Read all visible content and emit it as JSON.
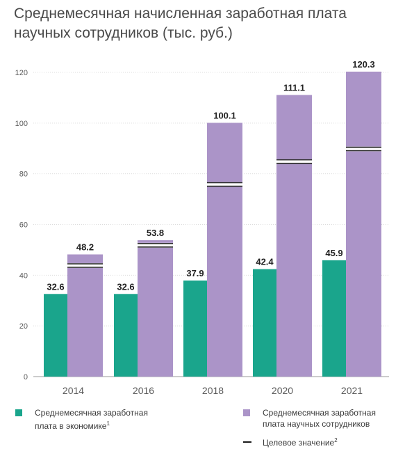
{
  "title": "Среднемесячная начисленная заработная плата научных сотрудников (тыс. руб.)",
  "colors": {
    "economy": "#1aa58c",
    "scientists": "#ab94c8",
    "target": "#1a1a1a",
    "grid": "#dcdcdc",
    "text": "#5a5a5a"
  },
  "legend": {
    "economy": "Среднемесячная заработная\nплата в экономике",
    "economy_note": "1",
    "scientists": "Среднемесячная заработная\nплата научных сотрудников",
    "target": "Целевое значение",
    "target_note": "2"
  },
  "chart_data": {
    "type": "bar",
    "categories": [
      "2014",
      "2016",
      "2018",
      "2020",
      "2021"
    ],
    "series": [
      {
        "name": "Среднемесячная заработная плата в экономике",
        "values": [
          32.6,
          32.6,
          37.9,
          42.4,
          45.9
        ]
      },
      {
        "name": "Среднемесячная заработная плата научных сотрудников",
        "values": [
          48.2,
          53.8,
          100.1,
          111.1,
          120.3
        ]
      },
      {
        "name": "Целевое значение",
        "values": [
          43.8,
          51.8,
          75.8,
          84.8,
          89.8
        ]
      }
    ],
    "y_ticks": [
      "0",
      "20",
      "40",
      "60",
      "80",
      "100",
      "120"
    ],
    "ylim": [
      0,
      120
    ],
    "grid": true,
    "value_labels": {
      "economy": [
        "32.6",
        "32.6",
        "37.9",
        "42.4",
        "45.9"
      ],
      "scientists": [
        "48.2",
        "53.8",
        "100.1",
        "111.1",
        "120.3"
      ]
    }
  }
}
